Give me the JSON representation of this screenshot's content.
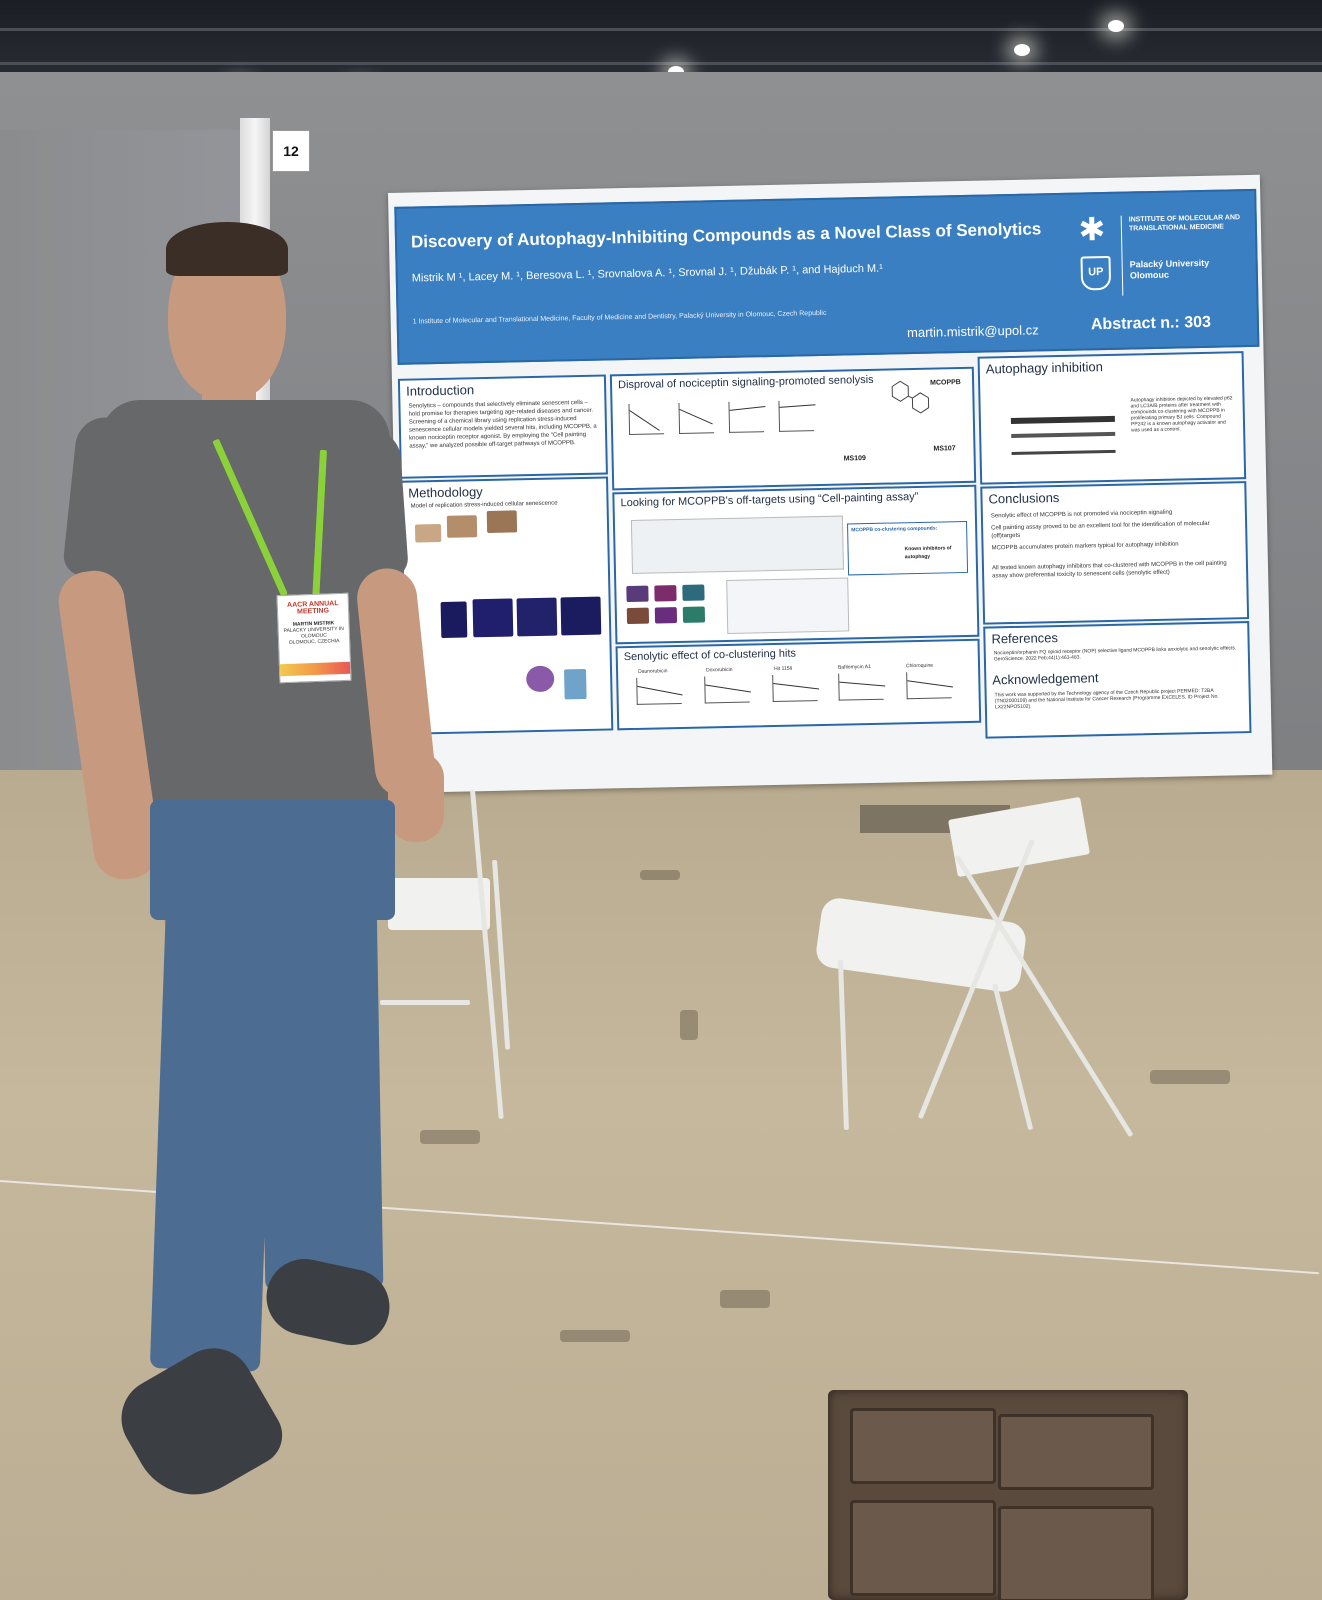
{
  "booth_number": "12",
  "poster": {
    "title": "Discovery of Autophagy-Inhibiting Compounds as a Novel Class of Senolytics",
    "authors": "Mistrik M ¹, Lacey M. ¹, Beresova L. ¹, Srovnalova A. ¹, Srovnal J. ¹, Džubák P. ¹, and Hajduch M.¹",
    "affiliation": "1 Institute of Molecular and Translational Medicine, Faculty of Medicine and Dentistry, Palacký University in Olomouc, Czech Republic",
    "email": "martin.mistrik@upol.cz",
    "abstract": "Abstract n.: 303",
    "institute": "INSTITUTE OF MOLECULAR AND TRANSLATIONAL MEDICINE",
    "university": "Palacký University Olomouc",
    "sections": {
      "introduction": "Introduction",
      "methodology": "Methodology",
      "disproval": "Disproval of nociceptin signaling-promoted senolysis",
      "offtargets": "Looking for MCOPPB's off-targets using “Cell-painting assay”",
      "senolytic_effect": "Senolytic effect of co-clustering hits",
      "autophagy": "Autophagy inhibition",
      "conclusions": "Conclusions",
      "references": "References",
      "acknowledgement": "Acknowledgement"
    },
    "compound_labels": {
      "mcoppb": "MCOPPB",
      "ms109": "MS109",
      "ms107": "MS107"
    },
    "clustering_title": "MCOPPB co-clustering compounds:",
    "clustering_note": "Known inhibitors of autophagy",
    "conclusions_items": [
      "Senolytic effect of MCOPPB is not promoted via nociceptin signaling",
      "Cell painting assay proved to be an excellent tool for the identification of molecular (off)targets",
      "MCOPPB accumulates protein markers typical for autophagy inhibition",
      "All tested known autophagy inhibitors that co-clustered with MCOPPB in the cell painting assay show preferential toxicity to senescent cells (senolytic effect)"
    ],
    "intro_text": "Senolytics – compounds that selectively eliminate senescent cells – hold promise for therapies targeting age-related diseases and cancer. Screening of a chemical library using replication stress-induced senescence cellular models yielded several hits, including MCOPPB, a known nociceptin receptor agonist. By employing the \"Cell painting assay,\" we analyzed possible off-target pathways of MCOPPB.",
    "methodology_text": "Model of replication stress-induced cellular senescence",
    "compound_names": [
      "Daunorubicin",
      "Doxorubicin",
      "Hit 1158",
      "Bafilomycin A1",
      "Chloroquine"
    ],
    "autophagy_text": "Autophagy inhibition depicted by elevated p62 and LC3A/B proteins after treatment with compounds co-clustering with MCOPPB in proliferating primary BJ cells. Compound PP242 is a known autophagy activator and was used as a control.",
    "references_text": "Nociceptin/orphanin FQ opioid receptor (NOP) selective ligand MCOPPB links anxiolytic and senolytic effects. GeroScience. 2022 Feb;44(1):463-483.",
    "ack_text": "This work was supported by the Technology agency of the Czech Republic project PERMED: T2BA (TN02000109) and the National Institute for Cancer Research (Programme EXCELES, ID Project No. LX22NPO5102)."
  },
  "badge": {
    "event": "AACR ANNUAL MEETING",
    "name": "MARTIN MISTRIK",
    "org": "PALACKY UNIVERSITY IN OLOMOUC",
    "location": "OLOMOUC, CZECHIA"
  },
  "colors": {
    "poster_header": "#3a7fc1",
    "poster_border": "#2b67a6",
    "lanyard": "#8bd13a",
    "wall": "#8a8c8e",
    "floor": "#bfb195"
  }
}
